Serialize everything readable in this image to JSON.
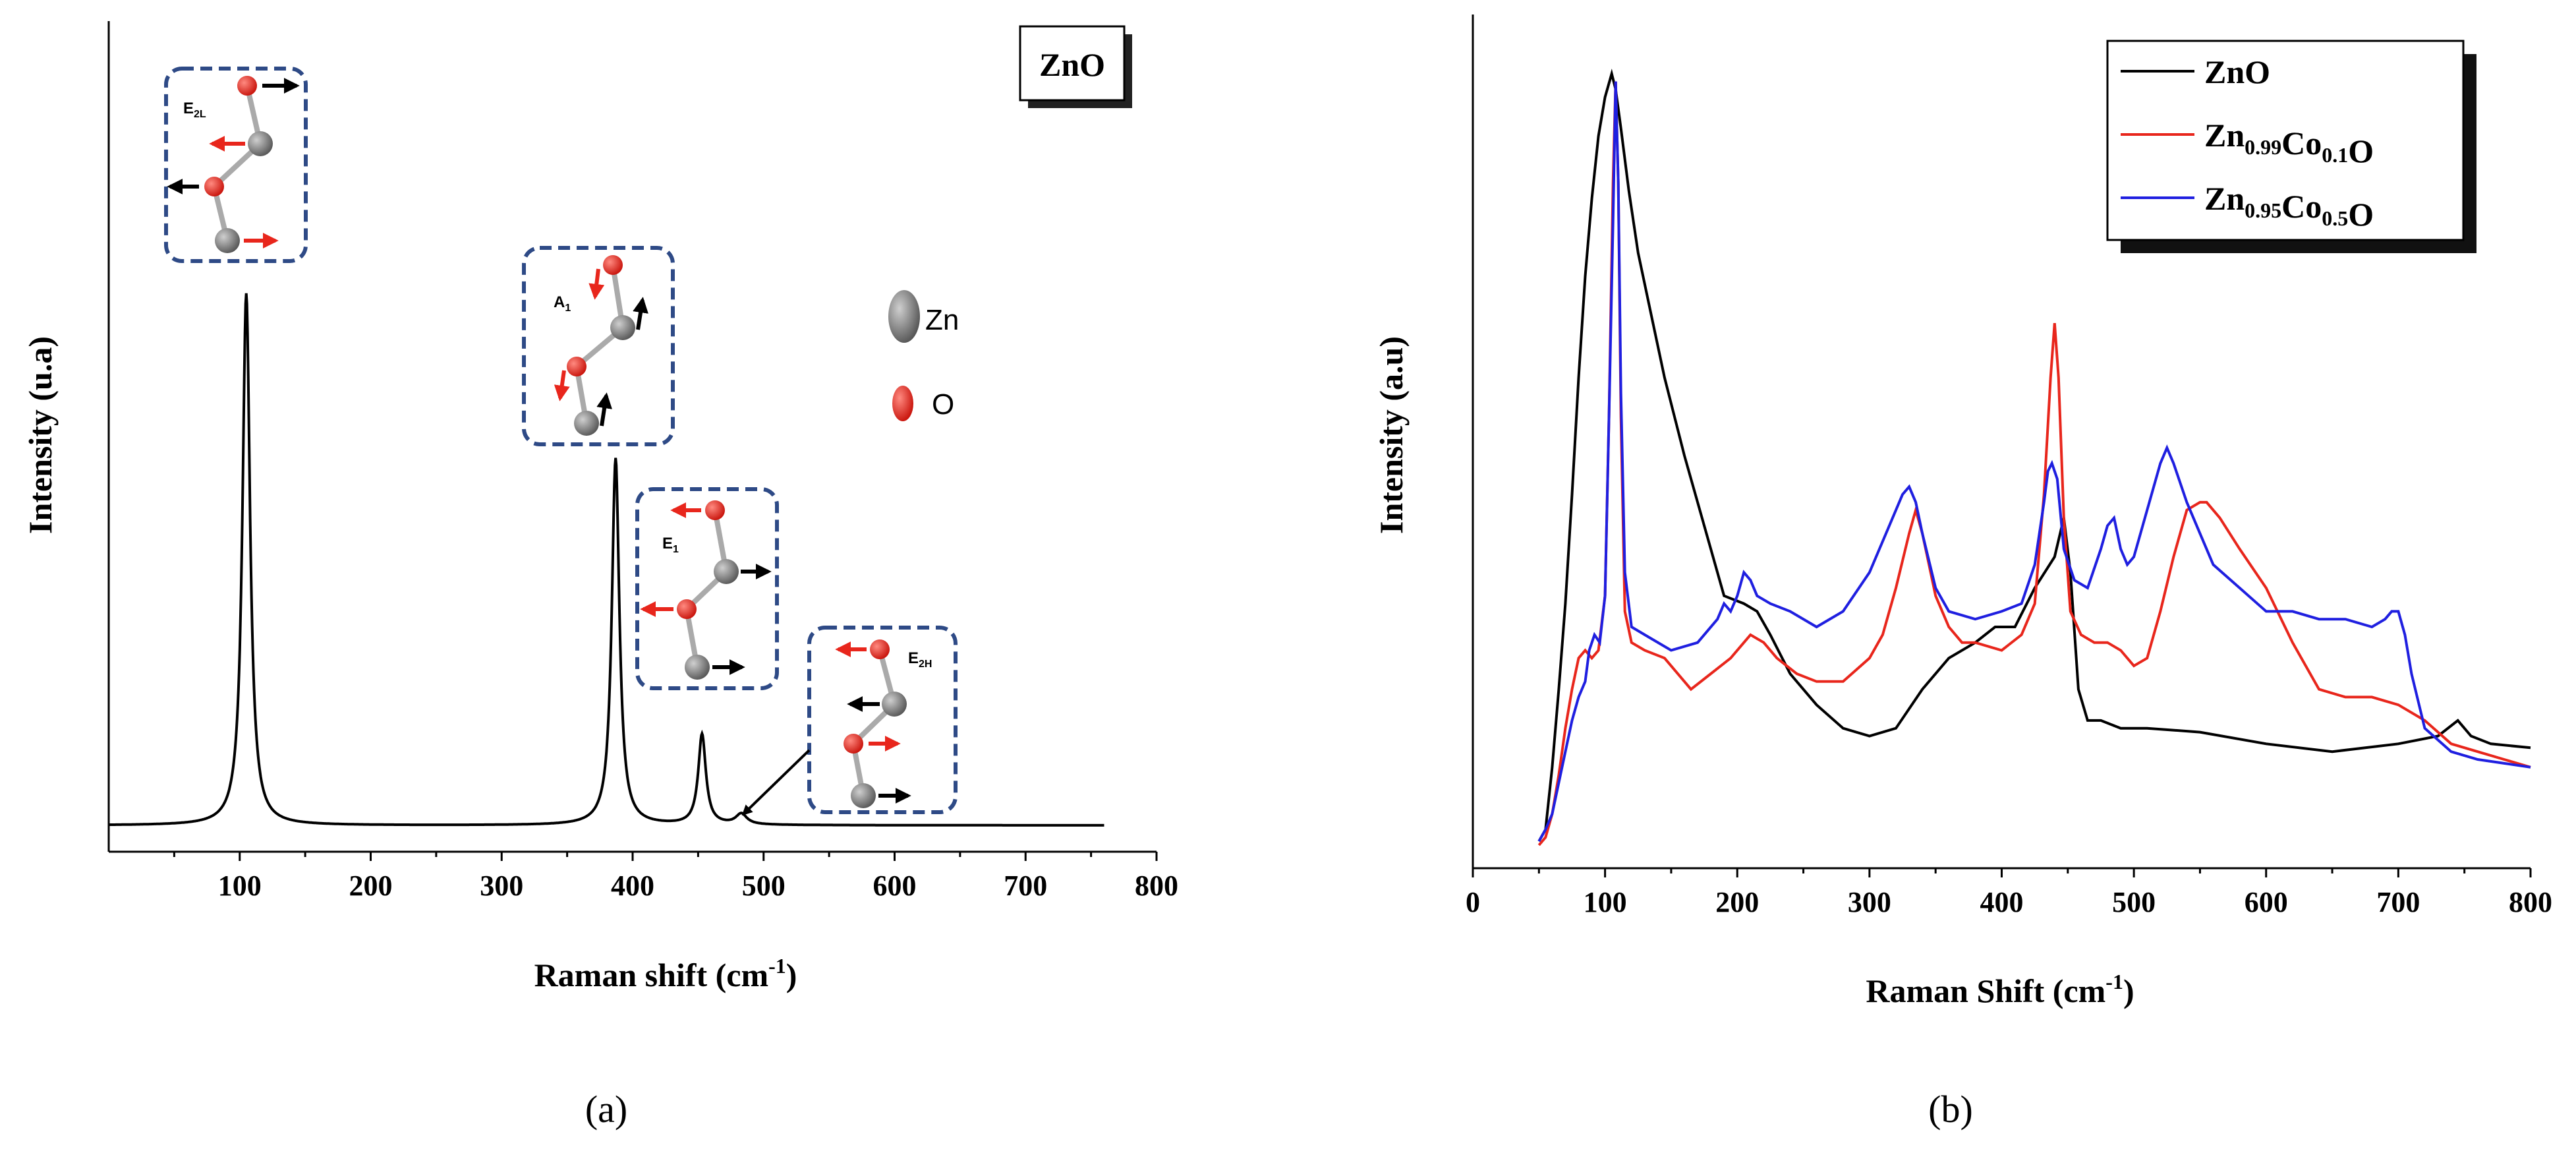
{
  "chart_data": [
    {
      "panel": "a",
      "type": "line",
      "title_badge": "ZnO",
      "xlabel": "Raman shift (cm",
      "xlabel_sup": "-1",
      "xlabel_close": ")",
      "ylabel": "Intensity (u.a)",
      "xlim": [
        0,
        800
      ],
      "ylim": [
        0,
        100
      ],
      "xticks": [
        100,
        200,
        300,
        400,
        500,
        600,
        700,
        800
      ],
      "series": [
        {
          "name": "ZnO",
          "color": "#000000",
          "baseline": 2.5,
          "x_range": [
            0,
            760
          ],
          "peaks": [
            {
              "x": 105,
              "height": 100,
              "width": 3.5
            },
            {
              "x": 387,
              "height": 69,
              "width": 3.5
            },
            {
              "x": 453,
              "height": 17,
              "width": 3.5
            },
            {
              "x": 483,
              "height": 2,
              "width": 5
            }
          ]
        }
      ],
      "modes": [
        {
          "name": "E2L",
          "base": "E",
          "sub": "2L"
        },
        {
          "name": "A1",
          "base": "A",
          "sub": "1"
        },
        {
          "name": "E1",
          "base": "E",
          "sub": "1"
        },
        {
          "name": "E2H",
          "base": "E",
          "sub": "2H"
        }
      ],
      "atom_key": [
        {
          "label": "Zn",
          "color": "#777777"
        },
        {
          "label": "O",
          "color": "#e8261c"
        }
      ],
      "sub_label": "(a)"
    },
    {
      "panel": "b",
      "type": "line",
      "xlabel": "Raman Shift (cm",
      "xlabel_sup": "-1",
      "xlabel_close": ")",
      "ylabel": "Intensity (a.u)",
      "xlim": [
        0,
        800
      ],
      "ylim": [
        0,
        100
      ],
      "xticks": [
        0,
        100,
        200,
        300,
        400,
        500,
        600,
        700,
        800
      ],
      "legend_position": "top-right",
      "series": [
        {
          "name": "ZnO",
          "label_parts": [
            {
              "t": "ZnO",
              "sub": ""
            }
          ],
          "color": "#000000",
          "x": [
            50,
            55,
            60,
            65,
            70,
            75,
            80,
            85,
            90,
            95,
            100,
            105,
            108,
            112,
            118,
            125,
            135,
            145,
            160,
            175,
            190,
            205,
            215,
            225,
            240,
            260,
            280,
            300,
            320,
            340,
            360,
            380,
            395,
            410,
            425,
            440,
            447,
            452,
            458,
            465,
            475,
            490,
            510,
            550,
            600,
            650,
            700,
            730,
            745,
            755,
            770,
            800
          ],
          "y": [
            0.5,
            2,
            10,
            20,
            31,
            45,
            60,
            73,
            83,
            91,
            96,
            99,
            97,
            92,
            84,
            76,
            68,
            60,
            50,
            41,
            32,
            31,
            30,
            27,
            22,
            18,
            15,
            14,
            15,
            20,
            24,
            26,
            28,
            28,
            33,
            37,
            42,
            35,
            20,
            16,
            16,
            15,
            15,
            14.5,
            13,
            12,
            13,
            14,
            16,
            14,
            13,
            12.5
          ]
        },
        {
          "name": "Zn0.99Co0.1O",
          "label_parts": [
            {
              "t": "Zn",
              "sub": "0.99"
            },
            {
              "t": "Co",
              "sub": "0.1"
            },
            {
              "t": "O",
              "sub": ""
            }
          ],
          "color": "#e8261c",
          "x": [
            50,
            55,
            60,
            65,
            70,
            75,
            80,
            85,
            90,
            95,
            100,
            103,
            106,
            108,
            110,
            112,
            115,
            120,
            130,
            145,
            165,
            180,
            195,
            205,
            210,
            220,
            230,
            245,
            260,
            280,
            300,
            310,
            320,
            330,
            335,
            340,
            350,
            360,
            370,
            380,
            400,
            415,
            425,
            432,
            437,
            440,
            443,
            447,
            452,
            460,
            470,
            480,
            490,
            500,
            510,
            520,
            530,
            540,
            550,
            555,
            565,
            580,
            600,
            620,
            640,
            660,
            680,
            700,
            720,
            740,
            760,
            780,
            800
          ],
          "y": [
            0,
            1,
            4,
            9,
            15,
            20,
            24,
            25,
            24,
            25,
            32,
            55,
            85,
            98,
            85,
            55,
            30,
            26,
            25,
            24,
            20,
            22,
            24,
            26,
            27,
            26,
            24,
            22,
            21,
            21,
            24,
            27,
            33,
            40,
            43,
            40,
            32,
            28,
            26,
            26,
            25,
            27,
            31,
            45,
            60,
            67,
            60,
            42,
            30,
            27,
            26,
            26,
            25,
            23,
            24,
            30,
            37,
            43,
            44,
            44,
            42,
            38,
            33,
            26,
            20,
            19,
            19,
            18,
            16,
            13,
            12,
            11,
            10
          ]
        },
        {
          "name": "Zn0.95Co0.5O",
          "label_parts": [
            {
              "t": "Zn",
              "sub": "0.95"
            },
            {
              "t": "Co",
              "sub": "0.5"
            },
            {
              "t": "O",
              "sub": ""
            }
          ],
          "color": "#1f1fe0",
          "x": [
            50,
            55,
            60,
            65,
            70,
            75,
            80,
            85,
            88,
            92,
            96,
            100,
            103,
            106,
            108,
            110,
            112,
            115,
            120,
            130,
            150,
            170,
            185,
            190,
            195,
            200,
            205,
            210,
            215,
            225,
            240,
            260,
            280,
            300,
            315,
            325,
            330,
            335,
            340,
            350,
            360,
            380,
            400,
            415,
            425,
            432,
            435,
            438,
            442,
            447,
            455,
            465,
            475,
            480,
            485,
            490,
            495,
            500,
            510,
            520,
            525,
            530,
            540,
            550,
            560,
            580,
            600,
            620,
            640,
            660,
            680,
            690,
            695,
            700,
            705,
            710,
            720,
            740,
            760,
            780,
            800
          ],
          "y": [
            0.5,
            2,
            4,
            8,
            12,
            16,
            19,
            21,
            25,
            27,
            26,
            32,
            55,
            80,
            98,
            85,
            58,
            35,
            28,
            27,
            25,
            26,
            29,
            31,
            30,
            32,
            35,
            34,
            32,
            31,
            30,
            28,
            30,
            35,
            41,
            45,
            46,
            44,
            40,
            33,
            30,
            29,
            30,
            31,
            36,
            44,
            48,
            49,
            47,
            38,
            34,
            33,
            38,
            41,
            42,
            38,
            36,
            37,
            43,
            49,
            51,
            49,
            44,
            40,
            36,
            33,
            30,
            30,
            29,
            29,
            28,
            29,
            30,
            30,
            27,
            22,
            15,
            12,
            11,
            10.5,
            10
          ]
        }
      ],
      "sub_label": "(b)"
    }
  ]
}
